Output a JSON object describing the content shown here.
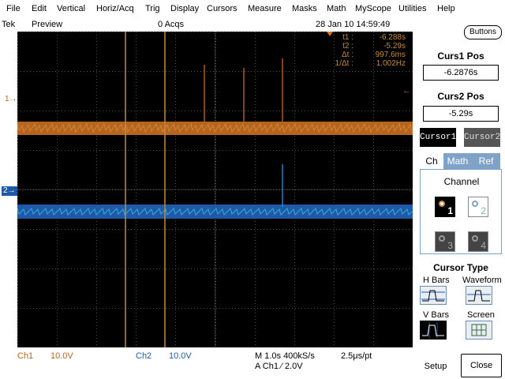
{
  "menu": [
    {
      "label": "File"
    },
    {
      "label": "Edit"
    },
    {
      "label": "Vertical"
    },
    {
      "label": "Horiz/Acq"
    },
    {
      "label": "Trig"
    },
    {
      "label": "Display"
    },
    {
      "label": "Cursors"
    },
    {
      "label": "Measure"
    },
    {
      "label": "Masks"
    },
    {
      "label": "Math"
    },
    {
      "label": "MyScope"
    },
    {
      "label": "Utilities"
    },
    {
      "label": "Help"
    }
  ],
  "status": {
    "brand": "Tek",
    "mode": "Preview",
    "acqs": "0 Acqs",
    "datetime": "28 Jan 10 14:59:49"
  },
  "readout": {
    "t1_label": "t1 :",
    "t1_value": "-6.288s",
    "t2_label": "t2 :",
    "t2_value": "-5.29s",
    "dt_label": "Δt :",
    "dt_value": "997.6ms",
    "inv_label": "1/Δt :",
    "inv_value": "1.002Hz"
  },
  "markers": {
    "ch1": "1→",
    "ch2": "2→",
    "trigger": "←"
  },
  "bottom": {
    "ch1_label": "Ch1",
    "ch1_scale": "10.0V",
    "ch2_label": "Ch2",
    "ch2_scale": "10.0V",
    "timebase": "M 1.0s 400kS/s",
    "resolution": "2.5μs/pt",
    "trigger": "A  Ch1  ∕  2.0V"
  },
  "panel": {
    "buttons_label": "Buttons",
    "cursor1_title": "Curs1 Pos",
    "cursor1_value": "-6.2876s",
    "cursor2_title": "Curs2 Pos",
    "cursor2_value": "-5.29s",
    "cursor1_button": "Cursor1",
    "cursor2_button": "Cursor2",
    "tabs": [
      {
        "label": "Ch"
      },
      {
        "label": "Math"
      },
      {
        "label": "Ref"
      }
    ],
    "channel_label": "Channel",
    "channels": [
      {
        "num": "1"
      },
      {
        "num": "2"
      },
      {
        "num": "3"
      },
      {
        "num": "4"
      }
    ],
    "cursor_type_label": "Cursor Type",
    "types": [
      {
        "label": "H Bars",
        "icon": "h-bars-icon"
      },
      {
        "label": "Waveform",
        "icon": "waveform-icon"
      },
      {
        "label": "V Bars",
        "icon": "v-bars-icon"
      },
      {
        "label": "Screen",
        "icon": "screen-icon"
      }
    ],
    "setup_label": "Setup",
    "close_label": "Close"
  },
  "colors": {
    "ch1": "#b5651d",
    "ch2": "#1e5aa8",
    "cursor": "#c48b3c",
    "grid": "#4a4a4a",
    "accent": "#7fa3c6"
  }
}
